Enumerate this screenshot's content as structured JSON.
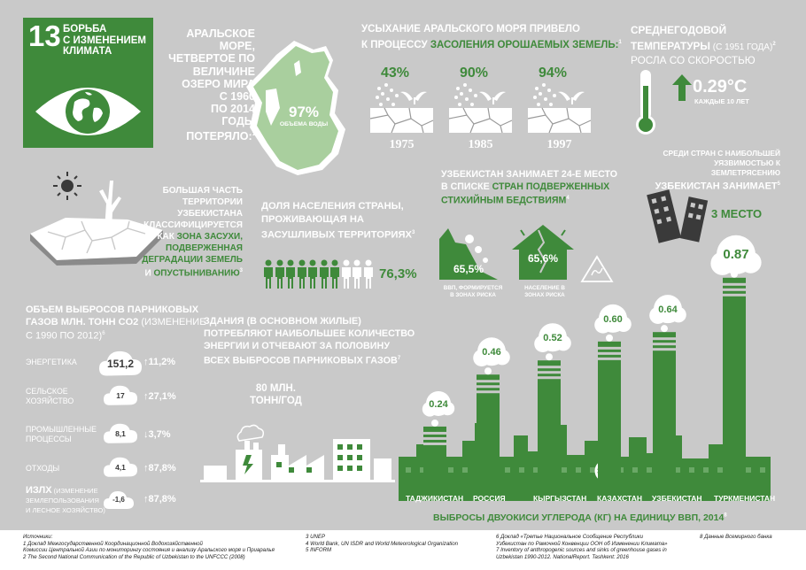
{
  "colors": {
    "green": "#3f8a3b",
    "bg": "#c9c9c9",
    "white": "#ffffff",
    "dark": "#3a3a3a"
  },
  "sdg": {
    "number": "13",
    "title_lines": [
      "БОРЬБА",
      "С ИЗМЕНЕНИЕМ",
      "КЛИМАТА"
    ],
    "icon": "eye-globe-icon"
  },
  "aral": {
    "text_lines": [
      "АРАЛЬСКОЕ МОРЕ,",
      "ЧЕТВЕРТОЕ ПО",
      "ВЕЛИЧИНЕ",
      "ОЗЕРО МИРА",
      "С 1960",
      "ПО 2014",
      "ГОДЫ",
      "ПОТЕРЯЛО:"
    ],
    "sup": "1",
    "pct": "97%",
    "pct_label": "ОБЪЕМА ВОДЫ"
  },
  "salinization": {
    "line1": "УСЫХАНИЕ АРАЛЬСКОГО МОРЯ ПРИВЕЛО",
    "line2_prefix": "К ПРОЦЕССУ ",
    "line2_highlight": "ЗАСОЛЕНИЯ ОРОШАЕМЫХ ЗЕМЕЛЬ:",
    "sup": "1",
    "items": [
      {
        "pct": "43%",
        "year": "1975"
      },
      {
        "pct": "90%",
        "year": "1985"
      },
      {
        "pct": "94%",
        "year": "1997"
      }
    ]
  },
  "temperature": {
    "line1": "СРЕДНЕГОДОВОЙ",
    "line2_highlight": "ТЕМПЕРАТУРЫ",
    "line2_rest": " (С 1951 ГОДА)",
    "sup": "2",
    "line3": "РОСЛА СО СКОРОСТЬЮ",
    "value": "0.29°C",
    "sub": "КАЖДЫЕ 10 ЛЕТ"
  },
  "drought": {
    "lines": [
      "БОЛЬШАЯ ЧАСТЬ",
      "ТЕРРИТОРИИ УЗБЕКИСТАНА",
      "КЛАССИФИЦИРУЕТСЯ"
    ],
    "kak": "КАК ",
    "zone": "ЗОНА ЗАСУХИ,",
    "green_lines": [
      "ПОДВЕРЖЕННАЯ",
      "ДЕГРАДАЦИИ ЗЕМЕЛЬ"
    ],
    "last_prefix": "И ",
    "last_highlight": "ОПУСТЫНИВАНИЮ",
    "sup": "3"
  },
  "population": {
    "lines": [
      "ДОЛЯ НАСЕЛЕНИЯ СТРАНЫ,",
      "ПРОЖИВАЮЩАЯ НА",
      "ЗАСУШЛИВЫХ ТЕРРИТОРИЯХ"
    ],
    "sup": "3",
    "value": "76,3%",
    "share": 0.763
  },
  "disasters": {
    "lines": [
      "УЗБЕКИСТАН ЗАНИМАЕТ 24-Е МЕСТО"
    ],
    "line2_prefix": "В СПИСКЕ ",
    "line2_highlight": "СТРАН ПОДВЕРЖЕННЫХ",
    "line3_highlight": "СТИХИЙНЫМ БЕДСТВИЯМ",
    "sup": "4",
    "gdp_pct": "65,5%",
    "gdp_label_lines": [
      "ВВП, ФОРМИРУЕТСЯ",
      "В ЗОНАХ РИСКА"
    ],
    "pop_pct": "65,6%",
    "pop_label_lines": [
      "НАСЕЛЕНИЕ В",
      "ЗОНАХ РИСКА"
    ]
  },
  "earthquake": {
    "lines": [
      "СРЕДИ СТРАН С НАИБОЛЬШЕЙ",
      "УЯЗВИМОСТЬЮ К ЗЕМЛЕТРЯСЕНИЮ"
    ],
    "line3": "УЗБЕКИСТАН ЗАНИМАЕТ",
    "sup": "5",
    "value": "3 МЕСТО"
  },
  "emissions": {
    "title_lines": [
      "ОБЪЕМ ВЫБРОСОВ ПАРНИКОВЫХ"
    ],
    "line2_prefix": "ГАЗОВ ",
    "line2_bold": "МЛН. ТОНН CO2",
    "line2_rest": " (ИЗМЕНЕНИЕ",
    "line3": "С 1990 ПО 2012)",
    "sup": "6",
    "rows": [
      {
        "label_lines": [
          "ЭНЕРГЕТИКА"
        ],
        "value": "151,2",
        "change": "11,2%",
        "dir": "up"
      },
      {
        "label_lines": [
          "СЕЛЬСКОЕ",
          "ХОЗЯЙСТВО"
        ],
        "value": "17",
        "change": "27,1%",
        "dir": "up"
      },
      {
        "label_lines": [
          "ПРОМЫШЛЕННЫЕ",
          "ПРОЦЕССЫ"
        ],
        "value": "8,1",
        "change": "3,7%",
        "dir": "down"
      },
      {
        "label_lines": [
          "ОТХОДЫ"
        ],
        "value": "4,1",
        "change": "87,8%",
        "dir": "up"
      }
    ],
    "lulucf_title": "ИЗЛХ",
    "lulucf_note": " (ИЗМЕНЕНИЕ",
    "lulucf_lines": [
      "ЗЕМЛЕПОЛЬЗОВАНИЯ",
      "И ЛЕСНОЕ ХОЗЯЙСТВО)"
    ],
    "lulucf_value": "-1,6",
    "lulucf_change": "87,8%"
  },
  "buildings": {
    "lines": [
      "ЗДАНИЯ (В ОСНОВНОМ ЖИЛЫЕ)",
      "ПОТРЕБЛЯЮТ НАИБОЛЬШЕЕ КОЛИЧЕСТВО",
      "ЭНЕРГИИ И ОТЧЕВАЮТ ЗА ПОЛОВИНУ",
      "ВСЕХ ВЫБРОСОВ ПАРНИКОВЫХ ГАЗОВ"
    ],
    "sup": "7",
    "value_lines": [
      "80 МЛН.",
      "ТОНН/ГОД"
    ]
  },
  "chart_data": {
    "type": "bar",
    "title": "ВЫБРОСЫ ДВУОКИСИ УГЛЕРОДА (КГ) НА ЕДИНИЦУ ВВП, 2014",
    "title_sup": "8",
    "categories": [
      "ТАДЖИКИСТАН",
      "РОССИЯ",
      "КЫРГЫЗСТАН",
      "КАЗАХСТАН",
      "УЗБЕКИСТАН",
      "ТУРКМЕНИСТАН"
    ],
    "values": [
      0.24,
      0.46,
      0.52,
      0.6,
      0.64,
      0.87
    ],
    "labels": [
      "0.24",
      "0.46",
      "0.52",
      "0.60",
      "0.64",
      "0.87"
    ]
  },
  "footer": {
    "col1": [
      "Источники:",
      "1 Доклад Межгосударственной Координационной Водохозяйственной",
      "   Комиссии Центральной Азии по мониторингу состояния и анализу Аральского моря и Приаралья",
      "2 The Second National Communication of the Republic of Uzbekistan to the UNFCCC (2008)"
    ],
    "col2": [
      "3 UNEP",
      "4 World Bank, UN ISDR and World Meteorological Organization",
      "5 INFORM"
    ],
    "col3": [
      "6 Доклад «Третье Национальное Сообщение Республики",
      "   Узбекистан по Рамочной Конвенции ООН об Изменении Климата»",
      "7  Inventory of anthropogenic sources and sinks of greenhouse gases in",
      "Uzbekistan 1990-2012. NationalReport. Tashkent: 2016"
    ],
    "col4": [
      "8 Данные Всемирного банка"
    ]
  }
}
